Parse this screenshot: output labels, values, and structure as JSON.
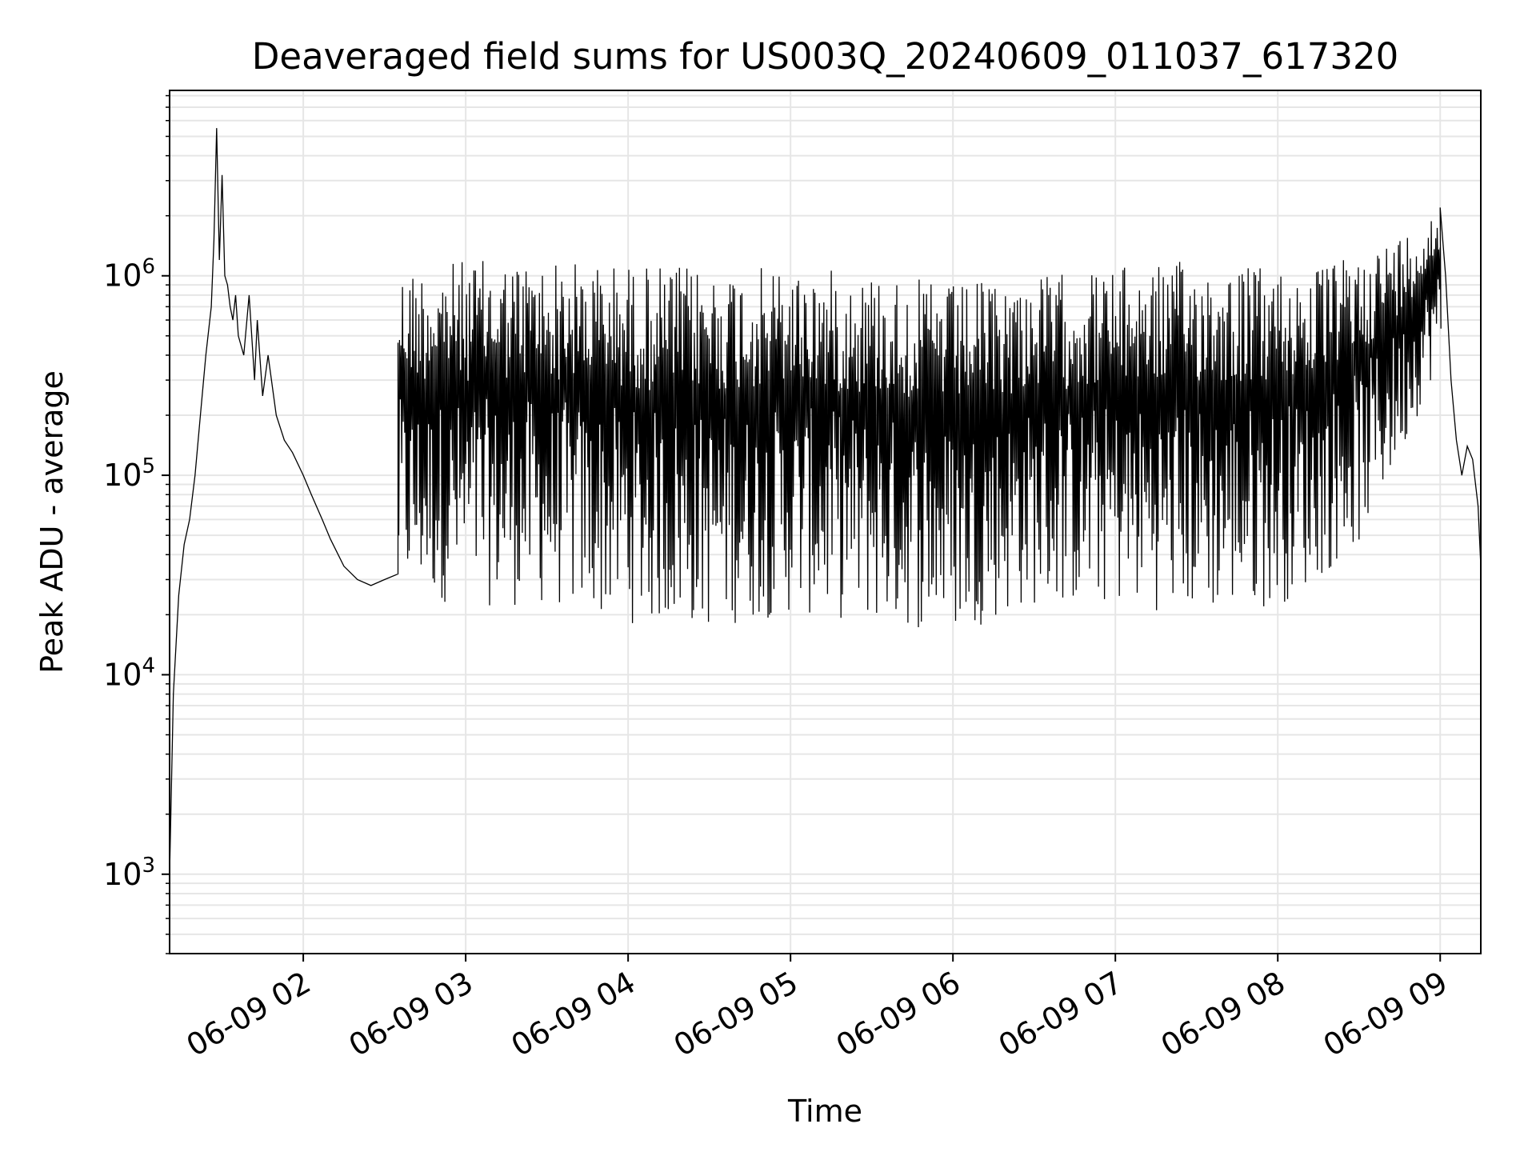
{
  "chart_data": {
    "type": "line",
    "title": "Deaveraged field sums for US003Q_20240609_011037_617320",
    "xlabel": "Time",
    "ylabel": "Peak ADU - average",
    "yscale": "log",
    "xlim": [
      "2024-06-09T01:10:37",
      "2024-06-09T09:15:00"
    ],
    "ylim": [
      400,
      8500000
    ],
    "grid": true,
    "x_ticks": [
      {
        "t": "2024-06-09T02:00",
        "label": "06-09 02"
      },
      {
        "t": "2024-06-09T03:00",
        "label": "06-09 03"
      },
      {
        "t": "2024-06-09T04:00",
        "label": "06-09 04"
      },
      {
        "t": "2024-06-09T05:00",
        "label": "06-09 05"
      },
      {
        "t": "2024-06-09T06:00",
        "label": "06-09 06"
      },
      {
        "t": "2024-06-09T07:00",
        "label": "06-09 07"
      },
      {
        "t": "2024-06-09T08:00",
        "label": "06-09 08"
      },
      {
        "t": "2024-06-09T09:00",
        "label": "06-09 09"
      }
    ],
    "y_ticks": [
      {
        "v": 1000,
        "base": "10",
        "exp": "3"
      },
      {
        "v": 10000,
        "base": "10",
        "exp": "4"
      },
      {
        "v": 100000,
        "base": "10",
        "exp": "5"
      },
      {
        "v": 1000000,
        "base": "10",
        "exp": "6"
      }
    ],
    "line_color": "#000000",
    "grid_color": "#e6e6e6",
    "series": [
      {
        "x": [
          "2024-06-09T01:10:37",
          "2024-06-09T01:12",
          "2024-06-09T01:14",
          "2024-06-09T01:16",
          "2024-06-09T01:18",
          "2024-06-09T01:20",
          "2024-06-09T01:22",
          "2024-06-09T01:24",
          "2024-06-09T01:26",
          "2024-06-09T01:27",
          "2024-06-09T01:28",
          "2024-06-09T01:29",
          "2024-06-09T01:30",
          "2024-06-09T01:31",
          "2024-06-09T01:32",
          "2024-06-09T01:33",
          "2024-06-09T01:34",
          "2024-06-09T01:35",
          "2024-06-09T01:36",
          "2024-06-09T01:38",
          "2024-06-09T01:40",
          "2024-06-09T01:42",
          "2024-06-09T01:43",
          "2024-06-09T01:45",
          "2024-06-09T01:47",
          "2024-06-09T01:50",
          "2024-06-09T01:53",
          "2024-06-09T01:56",
          "2024-06-09T02:00",
          "2024-06-09T02:03",
          "2024-06-09T02:07",
          "2024-06-09T02:10",
          "2024-06-09T02:15",
          "2024-06-09T02:20",
          "2024-06-09T02:25",
          "2024-06-09T02:30",
          "2024-06-09T02:35"
        ],
        "y": [
          1000,
          8000,
          25000,
          45000,
          60000,
          100000,
          200000,
          400000,
          700000,
          1500000,
          5500000,
          1200000,
          3200000,
          1000000,
          900000,
          700000,
          600000,
          800000,
          500000,
          400000,
          800000,
          300000,
          600000,
          250000,
          400000,
          200000,
          150000,
          130000,
          100000,
          80000,
          60000,
          48000,
          35000,
          30000,
          28000,
          30000,
          32000
        ]
      },
      {
        "x": [
          "2024-06-09T09:00",
          "2024-06-09T09:02",
          "2024-06-09T09:04",
          "2024-06-09T09:06",
          "2024-06-09T09:08",
          "2024-06-09T09:10",
          "2024-06-09T09:12",
          "2024-06-09T09:14",
          "2024-06-09T09:15"
        ],
        "y": [
          2200000,
          1000000,
          300000,
          150000,
          100000,
          140000,
          120000,
          70000,
          35000
        ]
      }
    ],
    "oscillation": {
      "description_free": true,
      "t_start": "2024-06-09T02:35",
      "t_end": "2024-06-09T09:00",
      "envelope_t": [
        "2024-06-09T02:35",
        "2024-06-09T03:00",
        "2024-06-09T03:30",
        "2024-06-09T04:00",
        "2024-06-09T04:30",
        "2024-06-09T05:00",
        "2024-06-09T05:30",
        "2024-06-09T06:00",
        "2024-06-09T06:30",
        "2024-06-09T07:00",
        "2024-06-09T07:30",
        "2024-06-09T08:00",
        "2024-06-09T08:15",
        "2024-06-09T08:30",
        "2024-06-09T08:45",
        "2024-06-09T09:00"
      ],
      "envelope_high": [
        1100000,
        1200000,
        1200000,
        1150000,
        1100000,
        1100000,
        1050000,
        900000,
        1000000,
        1100000,
        1200000,
        1100000,
        1100000,
        1300000,
        1600000,
        2200000
      ],
      "envelope_low": [
        25000,
        22000,
        22000,
        18000,
        17000,
        20000,
        18000,
        16000,
        22000,
        22000,
        20000,
        22000,
        30000,
        45000,
        120000,
        400000
      ],
      "cycles": 700
    }
  }
}
